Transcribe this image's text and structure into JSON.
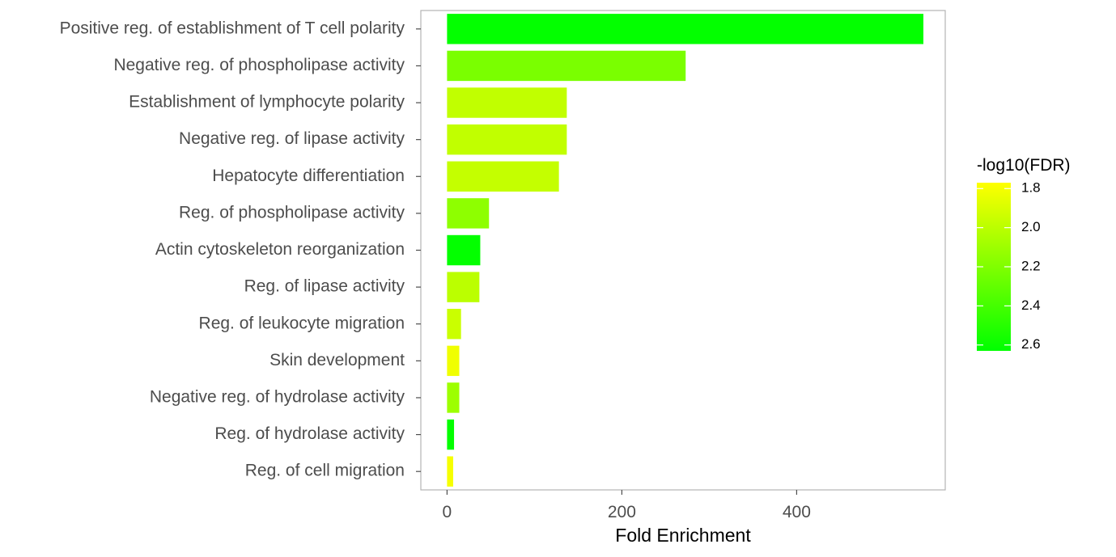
{
  "chart_data": {
    "type": "bar",
    "orientation": "horizontal",
    "xlabel": "Fold Enrichment",
    "ylabel": "",
    "xlim": [
      -30,
      570
    ],
    "x_ticks": [
      0,
      200,
      400
    ],
    "grid": false,
    "categories": [
      "Positive reg. of establishment of T cell polarity",
      "Negative reg. of phospholipase activity",
      "Establishment of lymphocyte polarity",
      "Negative reg. of lipase activity",
      "Hepatocyte differentiation",
      "Reg. of phospholipase activity",
      "Actin cytoskeleton reorganization",
      "Reg. of lipase activity",
      "Reg. of leukocyte migration",
      "Skin development",
      "Negative reg. of hydrolase activity",
      "Reg. of hydrolase activity",
      "Reg. of cell migration"
    ],
    "values": [
      545,
      273,
      137,
      137,
      128,
      48,
      38,
      37,
      16,
      14,
      14,
      8,
      7
    ],
    "color_values": [
      2.62,
      2.22,
      1.98,
      1.98,
      1.97,
      2.15,
      2.62,
      2.0,
      1.95,
      1.82,
      2.1,
      2.62,
      1.8
    ],
    "legend": {
      "title": "-log10(FDR)",
      "position": "right",
      "ticks": [
        "1.8",
        "2.0",
        "2.2",
        "2.4",
        "2.6"
      ],
      "tick_values": [
        1.8,
        2.0,
        2.2,
        2.4,
        2.6
      ],
      "range": [
        1.77,
        2.63
      ],
      "low_color": "#ffff00",
      "high_color": "#00ff00"
    }
  }
}
